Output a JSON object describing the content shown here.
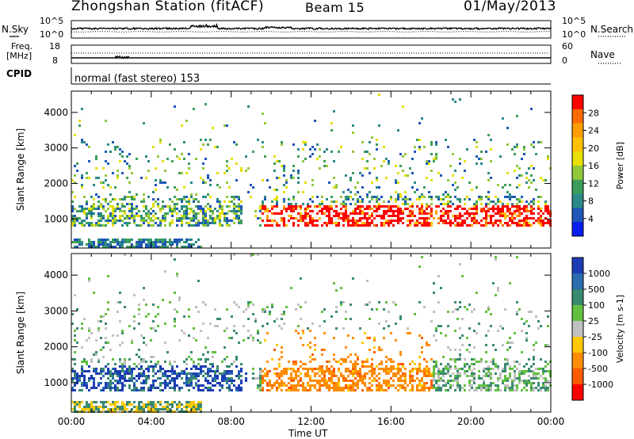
{
  "header": {
    "title": "Zhongshan Station (fitACF)",
    "beam": "Beam 15",
    "date": "01/May/2013"
  },
  "chart_data": [
    {
      "type": "line",
      "panel": "noise",
      "left_label": "N.Sky",
      "right_label": "N.Search",
      "left_ticks": [
        "10^5",
        "10^0"
      ],
      "right_ticks": [
        "10^5",
        "10^0"
      ],
      "xlim_hours": [
        0,
        24
      ]
    },
    {
      "type": "line",
      "panel": "frequency",
      "left_label_line1": "Freq.",
      "left_label_line2": "[MHz]",
      "right_label": "Nave",
      "left_ticks": [
        "18",
        "8"
      ],
      "right_ticks": [
        "60",
        "0"
      ],
      "xlim_hours": [
        0,
        24
      ]
    },
    {
      "type": "table",
      "panel": "cpid",
      "label": "CPID",
      "mode_text": "normal (fast stereo) 153"
    },
    {
      "type": "heatmap",
      "panel": "power",
      "ylabel": "Slant Range [km]",
      "yticks": [
        "4000",
        "3000",
        "2000",
        "1000"
      ],
      "ylim": [
        180,
        4600
      ],
      "colorbar_label": "Power [dB]",
      "colorbar_ticks": [
        "28",
        "24",
        "20",
        "16",
        "12",
        "8",
        "4"
      ],
      "colorbar_colors": [
        "#ff0000",
        "#ff6a00",
        "#ff9d00",
        "#ffc000",
        "#e6e000",
        "#92c83c",
        "#3c9d5a",
        "#2a8a88",
        "#1d56b8",
        "#0a1ef0"
      ]
    },
    {
      "type": "heatmap",
      "panel": "velocity",
      "ylabel": "Slant Range [km]",
      "yticks": [
        "4000",
        "3000",
        "2000",
        "1000"
      ],
      "ylim": [
        180,
        4600
      ],
      "xlabel": "Time UT",
      "xticks": [
        "00:00",
        "04:00",
        "08:00",
        "12:00",
        "16:00",
        "20:00",
        "00:00"
      ],
      "colorbar_label": "Velocity [m s-1]",
      "colorbar_ticks": [
        "1000",
        "500",
        "100",
        "25",
        "-25",
        "-100",
        "-500",
        "-1000"
      ],
      "colorbar_colors": [
        "#1c3cb4",
        "#2a6cb0",
        "#3a8a70",
        "#62c040",
        "#c0c0c0",
        "#ffc800",
        "#ff8c00",
        "#ff5a00",
        "#ff0000"
      ]
    }
  ]
}
